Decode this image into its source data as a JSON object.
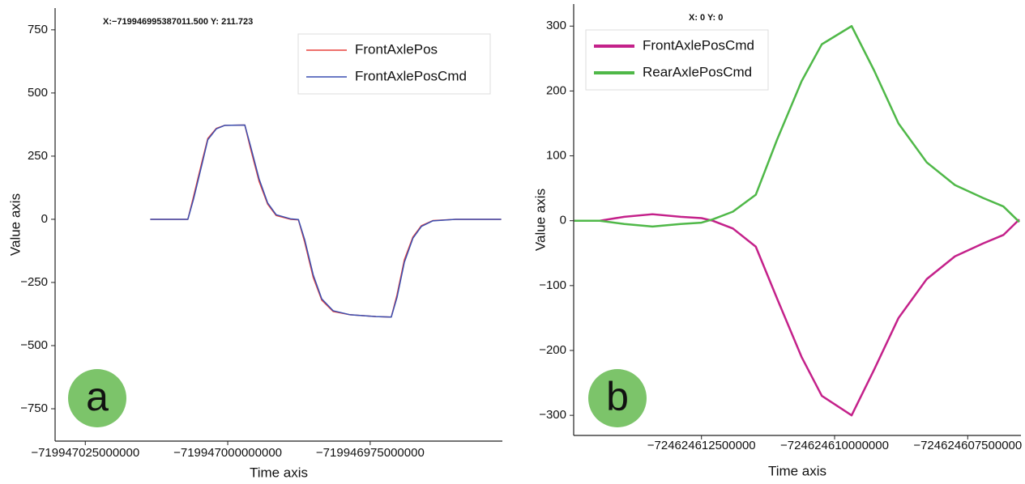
{
  "chart_data": [
    {
      "type": "line",
      "panel_label": "a",
      "annotation": "X:−719946995387011.500 Y: 211.723",
      "x_label": "Time axis",
      "y_label": "Value axis",
      "legend": "upper right",
      "xlim": [
        -719947030300000,
        -719946951800000
      ],
      "xticks": [
        {
          "value": -719947025000000,
          "label": "−719947025000000"
        },
        {
          "value": -719947000000000,
          "label": "−719947000000000"
        },
        {
          "value": -719946975000000,
          "label": "−719946975000000"
        }
      ],
      "ylim": [
        -878,
        836
      ],
      "yticks": [
        750,
        500,
        250,
        0,
        {
          "value": -250,
          "label": "−250"
        },
        {
          "value": -500,
          "label": "−500"
        },
        {
          "value": -750,
          "label": "−750"
        }
      ],
      "x": [
        -719947013600000,
        -719947007000000,
        -719947006000000,
        -719947004500000,
        -719947003500000,
        -719947002000000,
        -719947000500000,
        -719946997000000,
        -719946996000000,
        -719946994500000,
        -719946993000000,
        -719946991500000,
        -719946989000000,
        -719946987600000,
        -719946986500000,
        -719946985000000,
        -719946983500000,
        -719946981500000,
        -719946978500000,
        -719946974000000,
        -719946971300000,
        -719946970300000,
        -719946969000000,
        -719946967500000,
        -719946966000000,
        -719946964000000,
        -719946960000000,
        -719946952000000
      ],
      "series": [
        {
          "name": "FrontAxlePos",
          "color": "#e8413c",
          "values": [
            0,
            0,
            90,
            230,
            320,
            360,
            372,
            373,
            280,
            150,
            60,
            15,
            0,
            -2,
            -90,
            -230,
            -320,
            -365,
            -378,
            -385,
            -387,
            -300,
            -160,
            -70,
            -25,
            -5,
            0,
            0
          ]
        },
        {
          "name": "FrontAxlePosCmd",
          "color": "#3a4fb0",
          "values": [
            0,
            0,
            80,
            220,
            315,
            358,
            372,
            373,
            290,
            160,
            65,
            18,
            2,
            -1,
            -80,
            -220,
            -315,
            -362,
            -378,
            -385,
            -387,
            -310,
            -170,
            -75,
            -28,
            -6,
            0,
            0
          ]
        }
      ]
    },
    {
      "type": "line",
      "panel_label": "b",
      "annotation": "X: 0  Y: 0",
      "x_label": "Time axis",
      "y_label": "Value axis",
      "legend": "upper left",
      "xlim": [
        -724624614900000,
        -724624606500000
      ],
      "xticks": [
        {
          "value": -724624612500000,
          "label": "−724624612500000"
        },
        {
          "value": -724624610000000,
          "label": "−724624610000000"
        },
        {
          "value": -724624607500000,
          "label": "−724624607500000"
        }
      ],
      "ylim": [
        -331,
        334
      ],
      "yticks": [
        300,
        200,
        100,
        0,
        {
          "value": -100,
          "label": "−100"
        },
        {
          "value": -200,
          "label": "−200"
        },
        {
          "value": -300,
          "label": "−300"
        }
      ],
      "x": [
        -724624614890000,
        -724624614410000,
        -724624613950000,
        -724624613420000,
        -724624612890000,
        -724624612500000,
        -724624612290000,
        -724624611910000,
        -724624611480000,
        -724624611080000,
        -724624610620000,
        -724624610240000,
        -724624609680000,
        -724624609260000,
        -724624608800000,
        -724624608270000,
        -724624607740000,
        -724624607210000,
        -724624606830000,
        -724624606530000
      ],
      "series": [
        {
          "name": "FrontAxlePosCmd",
          "color": "#c4218a",
          "values": [
            0,
            0,
            6,
            10,
            6,
            4,
            0,
            -12,
            -40,
            -120,
            -210,
            -270,
            -300,
            -230,
            -150,
            -90,
            -55,
            -35,
            -22,
            2
          ]
        },
        {
          "name": "RearAxlePosCmd",
          "color": "#4fb848",
          "values": [
            0,
            0,
            -5,
            -9,
            -5,
            -3,
            2,
            14,
            40,
            125,
            215,
            272,
            300,
            232,
            150,
            90,
            55,
            35,
            22,
            -2
          ]
        }
      ]
    }
  ]
}
